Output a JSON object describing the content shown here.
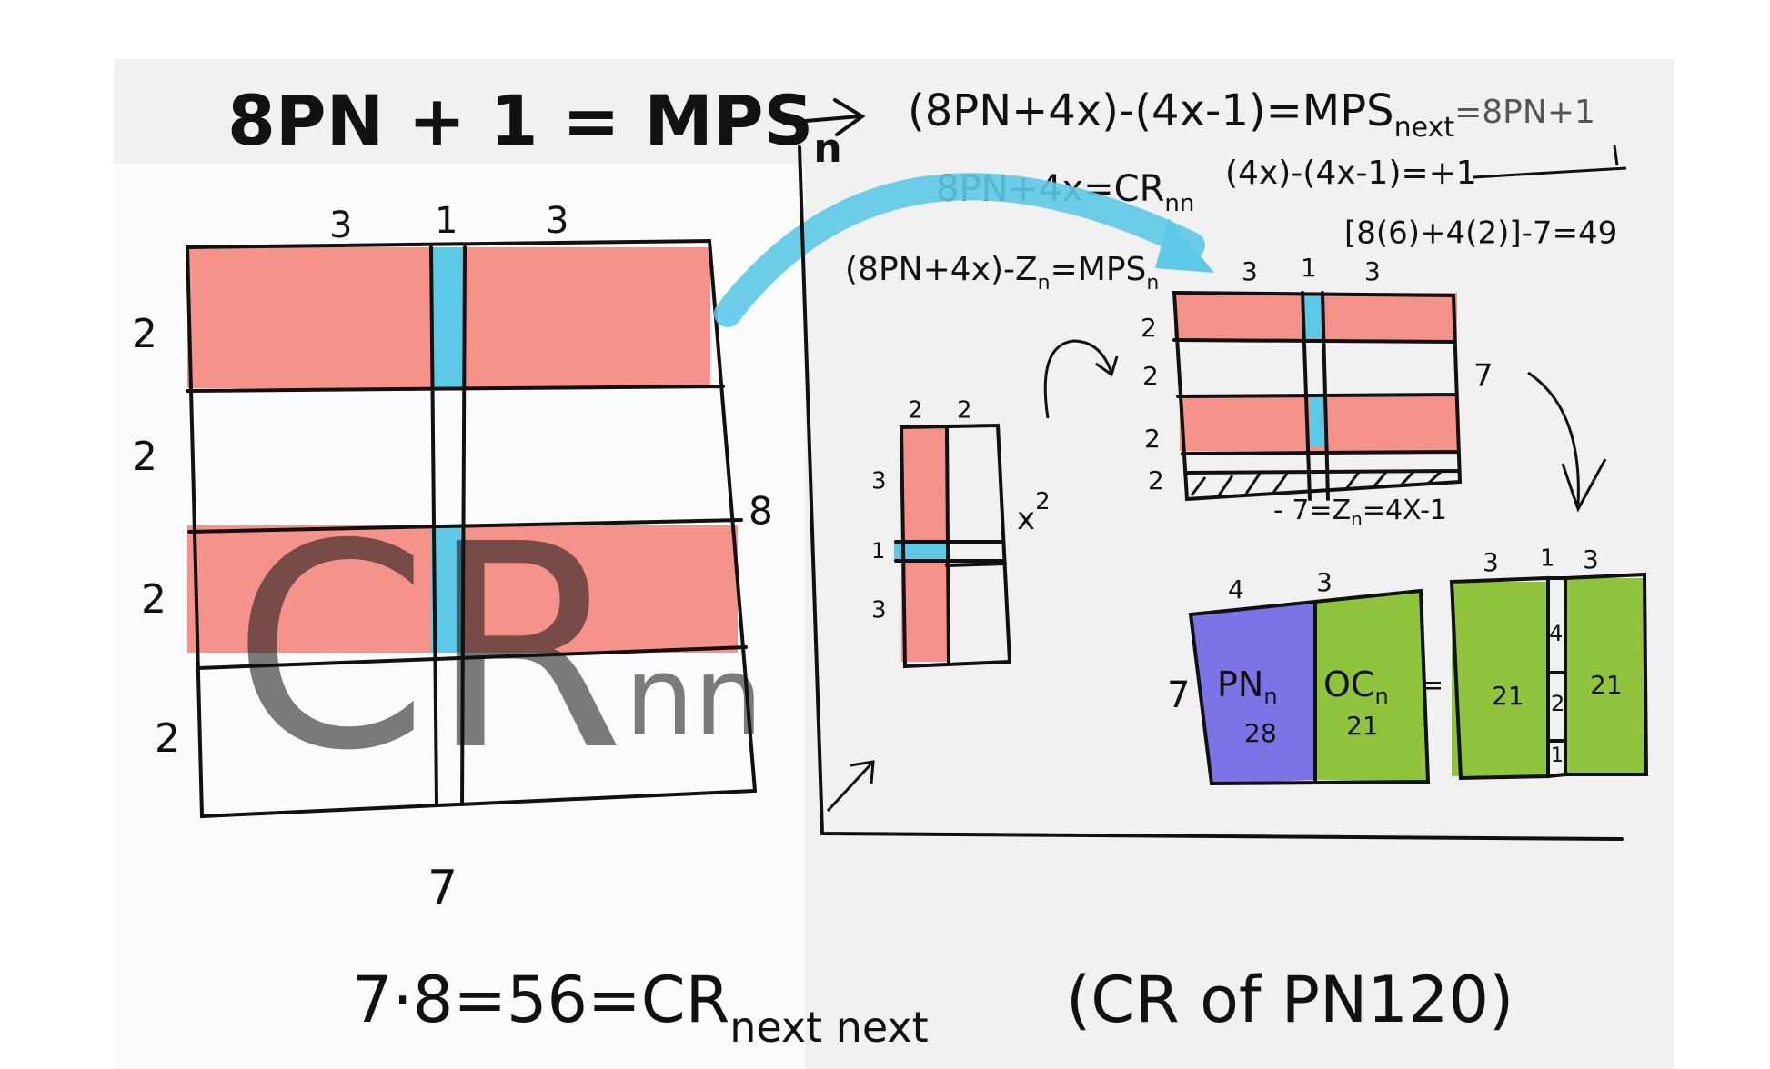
{
  "header": {
    "formula": "8PN + 1 = MPS",
    "formula_sub": "n"
  },
  "derivation": {
    "line1": "(8PN+4x)-(4x-1)=MPS",
    "line1_sub": "next",
    "line1_end": "=8PN+1",
    "cr_def": "8PN+4x=CR",
    "cr_def_sub": "nn",
    "difference": "(4x)-(4x-1)=+1",
    "example": "[8(6)+4(2)]-7=49",
    "mps_def": "(8PN+4x)-Z",
    "mps_def_sub": "n",
    "mps_def_mid": "=MPS",
    "mps_def_sub2": "n"
  },
  "large_grid": {
    "top": [
      "3",
      "1",
      "3"
    ],
    "left": [
      "2",
      "2",
      "2",
      "2"
    ],
    "right": "8",
    "bottom": "7",
    "watermark": "CR",
    "watermark_sub": "nn"
  },
  "small_grid": {
    "top": [
      "2",
      "2"
    ],
    "left": [
      "3",
      "1",
      "3"
    ],
    "power": "x",
    "power_sup": "2"
  },
  "medium_grid": {
    "top": [
      "3",
      "1",
      "3"
    ],
    "left": [
      "2",
      "2",
      "2",
      "2"
    ],
    "right": "7",
    "note": "- 7=Z",
    "note_sub": "n",
    "note_end": "=4X-1"
  },
  "split_box": {
    "top": [
      "4",
      "3"
    ],
    "left": "7",
    "pn": "PN",
    "pn_sub": "n",
    "pn_value": "28",
    "oc": "OC",
    "oc_sub": "n",
    "oc_value": "21",
    "equals": "="
  },
  "rearranged_box": {
    "top": [
      "3",
      "1",
      "3"
    ],
    "strip": [
      "4",
      "2",
      "1"
    ],
    "values": [
      "21",
      "21"
    ]
  },
  "footer": {
    "equation": "7·8=56=CR",
    "equation_sub": "next next",
    "note": "(CR of PN120)"
  }
}
